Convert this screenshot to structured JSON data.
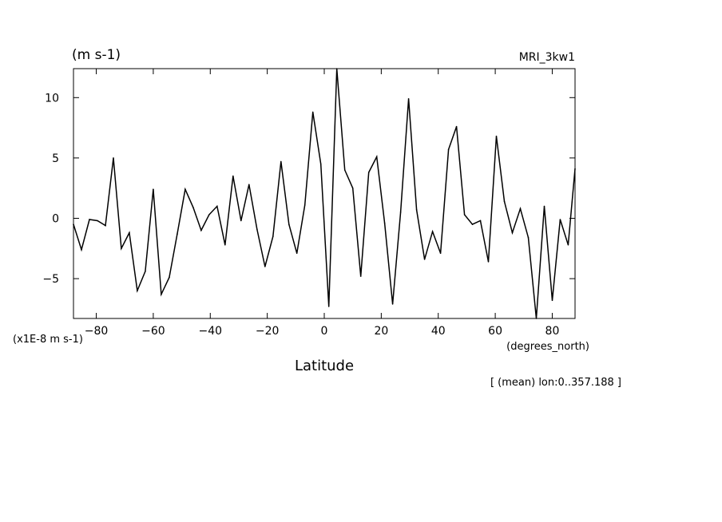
{
  "chart_data": {
    "type": "line",
    "units_label": "(m s-1)",
    "model_label": "MRI_3kw1",
    "scale_label": "(x1E-8 m s-1)",
    "x_units": "(degrees_north)",
    "xlabel": "Latitude",
    "footnote": "[ (mean) lon:0..357.188 ]",
    "xlim": [
      -88,
      88
    ],
    "ylim": [
      -8.3,
      12.4
    ],
    "xticks": [
      -80,
      -60,
      -40,
      -20,
      0,
      20,
      40,
      60,
      80
    ],
    "yticks": [
      -5,
      0,
      5,
      10
    ],
    "xtick_labels": [
      "−80",
      "−60",
      "−40",
      "−20",
      "0",
      "20",
      "40",
      "60",
      "80"
    ],
    "ytick_labels": [
      "−5",
      "0",
      "5",
      "10"
    ],
    "grid": false,
    "series": [
      {
        "color": "#000000",
        "x": [
          -88,
          -85.2,
          -82.4,
          -79.6,
          -76.8,
          -74.0,
          -71.2,
          -68.4,
          -65.6,
          -62.8,
          -60.0,
          -57.2,
          -54.4,
          -51.6,
          -48.8,
          -46.0,
          -43.2,
          -40.4,
          -37.6,
          -34.8,
          -32.0,
          -29.2,
          -26.4,
          -23.6,
          -20.8,
          -18.0,
          -15.2,
          -12.4,
          -9.6,
          -6.8,
          -4.0,
          -1.2,
          1.6,
          4.4,
          7.2,
          10.0,
          12.8,
          15.6,
          18.4,
          21.2,
          24.0,
          26.8,
          29.6,
          32.4,
          35.2,
          38.0,
          40.8,
          43.6,
          46.4,
          49.2,
          52.0,
          54.8,
          57.6,
          60.4,
          63.2,
          66.0,
          68.8,
          71.6,
          74.4,
          77.2,
          80.0,
          82.8,
          85.6,
          88.0
        ],
        "y": [
          -0.5,
          -2.6,
          -0.1,
          -0.2,
          -0.6,
          5.0,
          -2.5,
          -1.2,
          -6.0,
          -4.4,
          2.4,
          -6.3,
          -4.9,
          -1.3,
          2.4,
          0.9,
          -1.0,
          0.3,
          1.0,
          -2.2,
          3.5,
          -0.2,
          2.8,
          -0.9,
          -4.0,
          -1.5,
          4.7,
          -0.5,
          -2.9,
          1.1,
          8.8,
          4.5,
          -7.3,
          12.4,
          4.0,
          2.5,
          -4.8,
          3.8,
          5.1,
          -0.4,
          -7.1,
          0.5,
          9.9,
          0.7,
          -3.4,
          -1.1,
          -2.9,
          5.7,
          7.6,
          0.3,
          -0.5,
          -0.2,
          -3.6,
          6.8,
          1.4,
          -1.2,
          0.8,
          -1.6,
          -8.3,
          1.0,
          -6.8,
          -0.1,
          -2.2,
          4.1
        ]
      }
    ]
  }
}
